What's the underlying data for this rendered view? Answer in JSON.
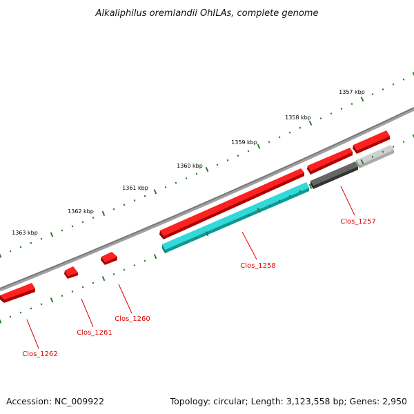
{
  "title": "Alkaliphilus oremlandii OhILAs, complete genome",
  "footer": {
    "accession": "Accession: NC_009922",
    "summary": "Topology: circular; Length: 3,123,558 bp; Genes: 2,950"
  },
  "ticks": [
    {
      "label": "1357 kbp"
    },
    {
      "label": "1358 kbp"
    },
    {
      "label": "1359 kbp"
    },
    {
      "label": "1360 kbp"
    },
    {
      "label": "1361 kbp"
    },
    {
      "label": "1362 kbp"
    },
    {
      "label": "1363 kbp"
    }
  ],
  "genes": [
    {
      "label": "Clos_1257"
    },
    {
      "label": "Clos_1258"
    },
    {
      "label": "Clos_1260"
    },
    {
      "label": "Clos_1261"
    },
    {
      "label": "Clos_1262"
    }
  ],
  "colors": {
    "backbone": "#888888",
    "cds": "#ee0000",
    "cds_dark": "#aa0000",
    "gene_cyan": "#22cccc",
    "gene_grey": "#666666",
    "gene_lightgrey": "#cccccc",
    "tick": "#2a7a2a",
    "label": "#dd0000"
  }
}
